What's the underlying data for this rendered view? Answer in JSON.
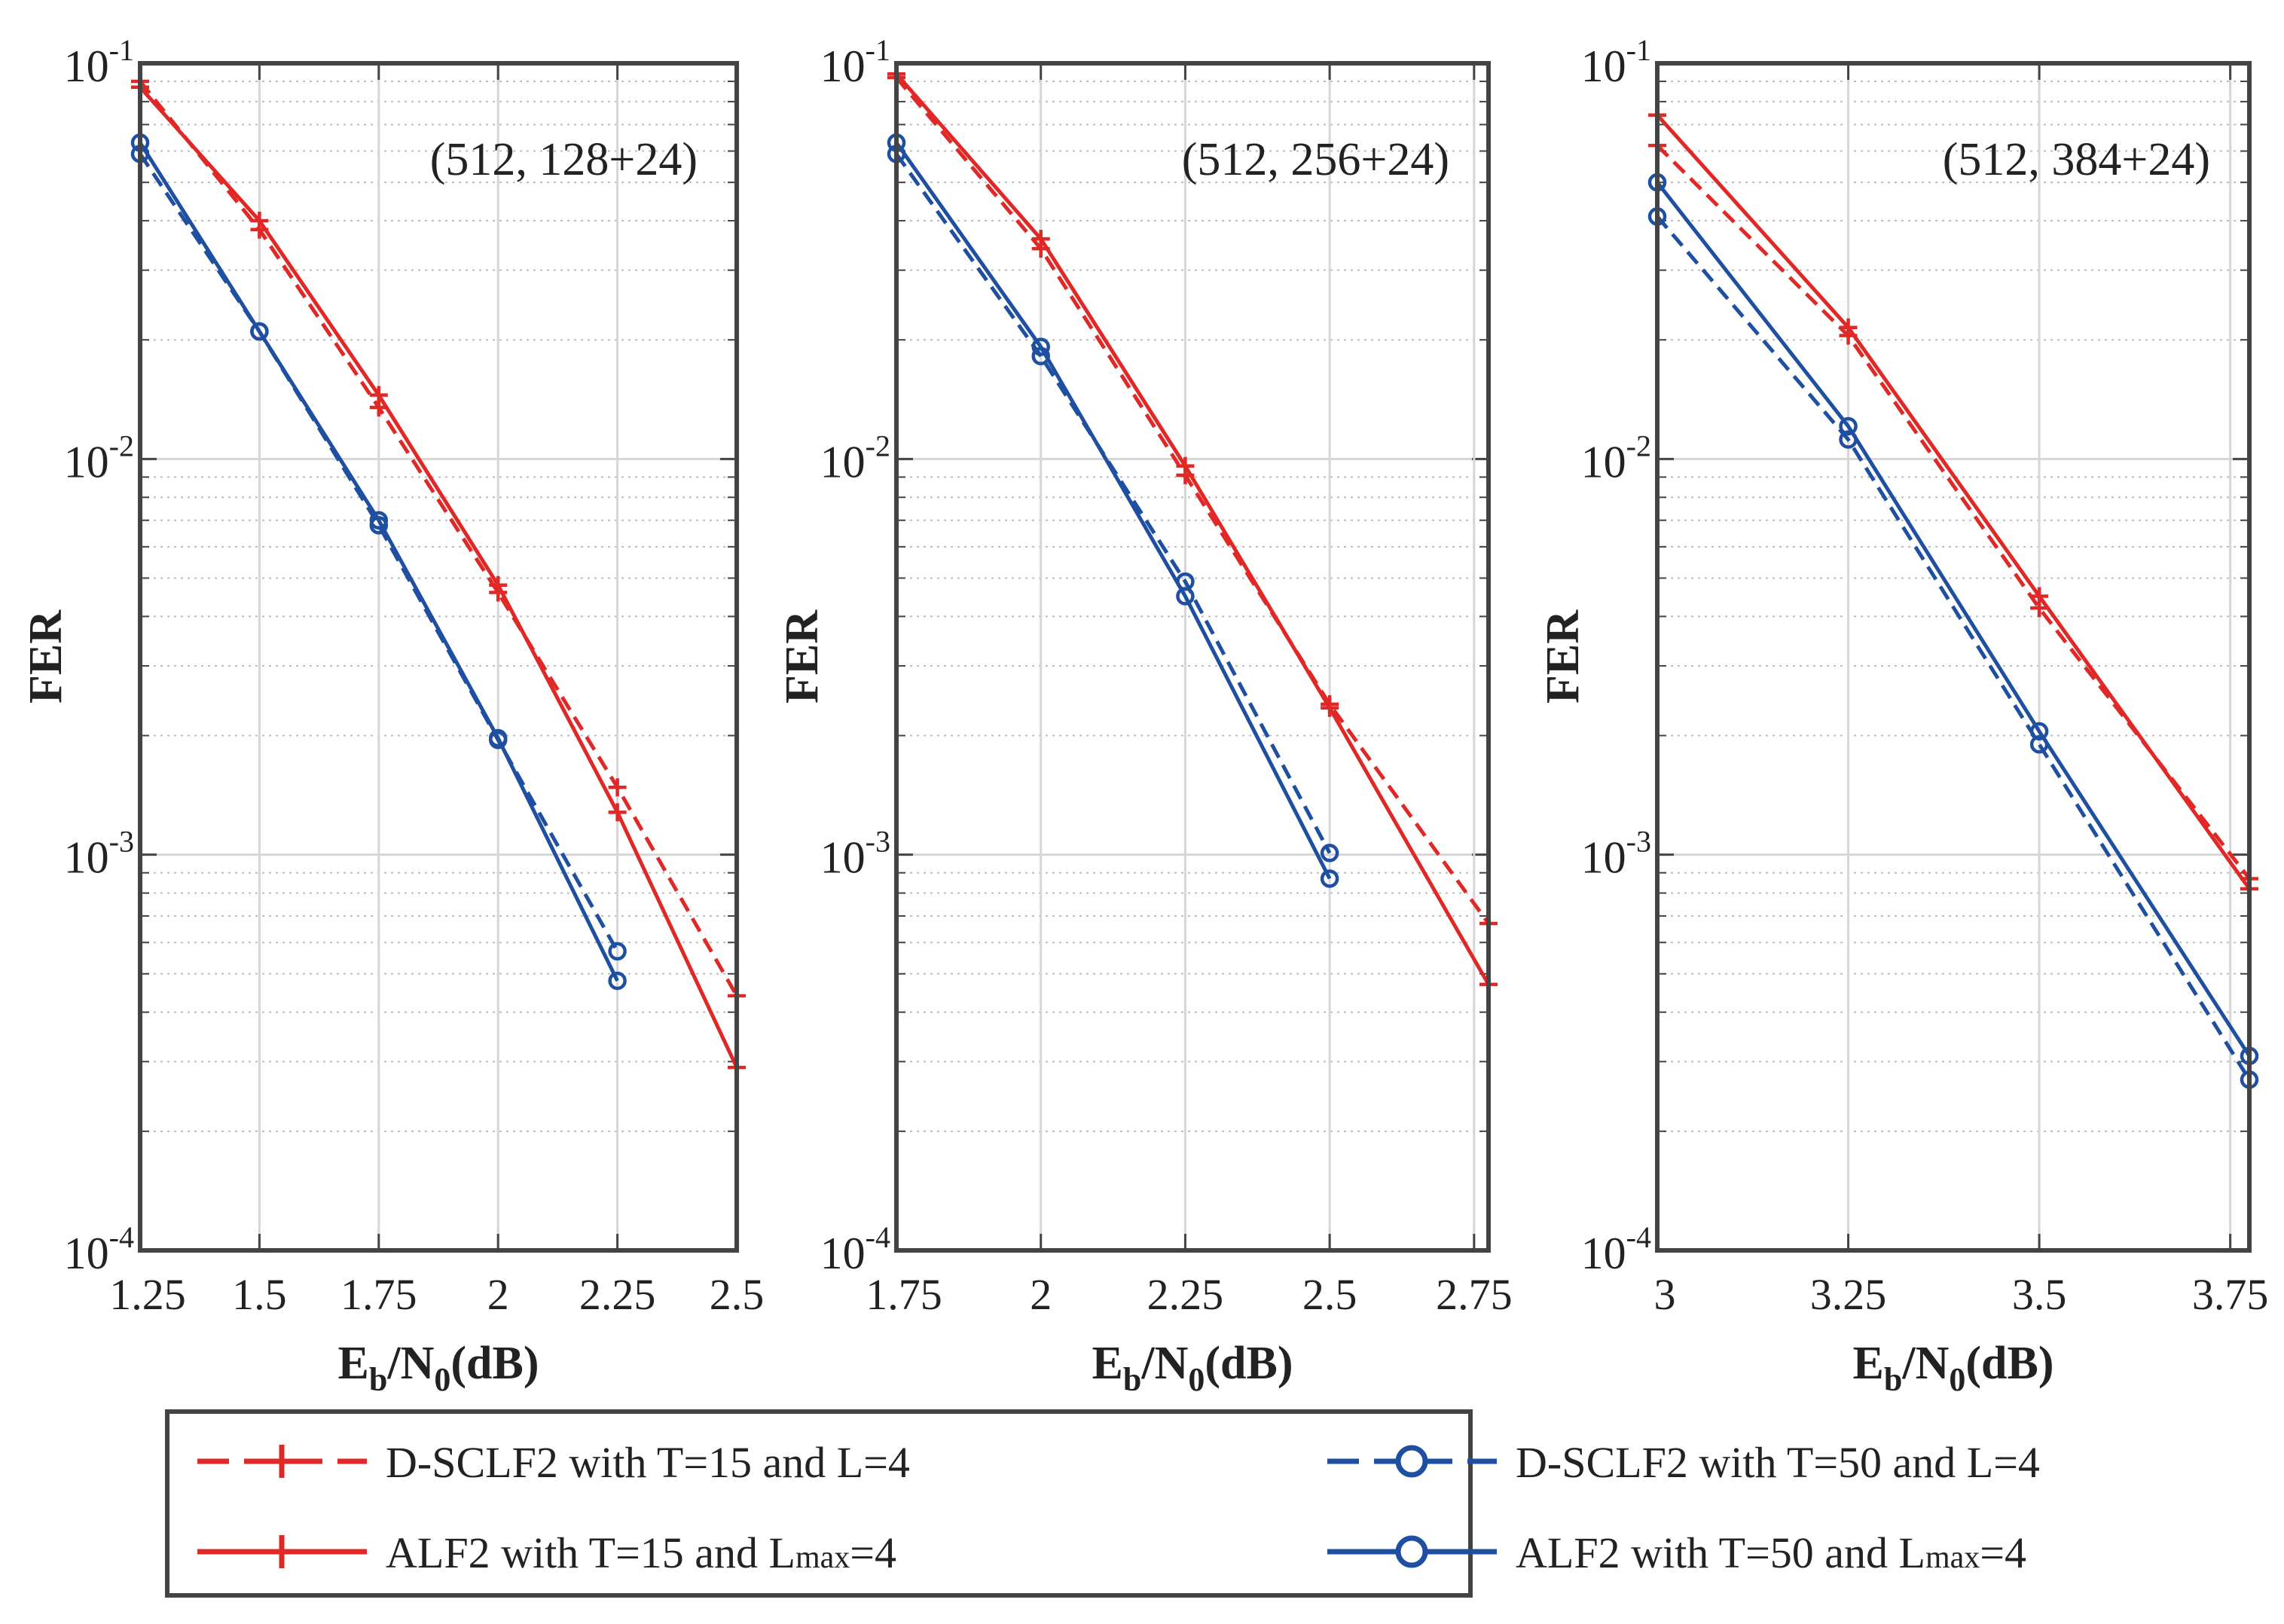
{
  "figure": {
    "legend": [
      {
        "name": "D-SCLF2 with T=15 and L=4",
        "color": "#e02826",
        "dash": true,
        "marker": "plus"
      },
      {
        "name": "D-SCLF2 with T=50 and L=4",
        "color": "#1f4fa0",
        "dash": true,
        "marker": "circle"
      },
      {
        "name": "ALF2 with T=15 and L",
        "sub": "max",
        "tail": "=4",
        "color": "#e02826",
        "dash": false,
        "marker": "plus"
      },
      {
        "name": "ALF2 with T=50 and L",
        "sub": "max",
        "tail": "=4",
        "color": "#1f4fa0",
        "dash": false,
        "marker": "circle"
      }
    ]
  },
  "chart_data": [
    {
      "type": "line",
      "annotation": "(512, 128+24)",
      "ylabel": "FER",
      "xlabel": {
        "main": "E",
        "sub1": "b",
        "mid": "/N",
        "sub2": "0",
        "tail": "(dB)"
      },
      "xlim": [
        1.25,
        2.5
      ],
      "ylim": [
        0.0001,
        0.1
      ],
      "yscale": "log",
      "xticks": [
        1.25,
        1.5,
        1.75,
        2,
        2.25,
        2.5
      ],
      "xtick_labels": [
        "1.25",
        "1.5",
        "1.75",
        "2",
        "2.25",
        "2.5"
      ],
      "yticks": [
        {
          "base": "10",
          "exp": "-1"
        },
        {
          "base": "10",
          "exp": "-2"
        },
        {
          "base": "10",
          "exp": "-3"
        },
        {
          "base": "10",
          "exp": "-4"
        }
      ],
      "series": [
        {
          "name": "D-SCLF2 with T=15 and L=4",
          "x": [
            1.25,
            1.5,
            1.75,
            2,
            2.25,
            2.5
          ],
          "y": [
            0.09,
            0.038,
            0.0135,
            0.0046,
            0.00148,
            0.00044
          ]
        },
        {
          "name": "ALF2 with T=15 and Lmax=4",
          "x": [
            1.25,
            1.5,
            1.75,
            2,
            2.25,
            2.5
          ],
          "y": [
            0.087,
            0.04,
            0.0145,
            0.0048,
            0.00128,
            0.00029
          ]
        },
        {
          "name": "D-SCLF2 with T=50 and L=4",
          "x": [
            1.25,
            1.5,
            1.75,
            2,
            2.25
          ],
          "y": [
            0.059,
            0.021,
            0.0068,
            0.00195,
            0.00057
          ]
        },
        {
          "name": "ALF2 with T=50 and Lmax=4",
          "x": [
            1.25,
            1.5,
            1.75,
            2,
            2.25
          ],
          "y": [
            0.063,
            0.021,
            0.007,
            0.00197,
            0.00048
          ]
        }
      ]
    },
    {
      "type": "line",
      "annotation": "(512, 256+24)",
      "ylabel": "FER",
      "xlabel": {
        "main": "E",
        "sub1": "b",
        "mid": "/N",
        "sub2": "0",
        "tail": "(dB)"
      },
      "xlim": [
        1.75,
        2.775
      ],
      "ylim": [
        0.0001,
        0.1
      ],
      "yscale": "log",
      "xticks": [
        1.75,
        2,
        2.25,
        2.5,
        2.75
      ],
      "xtick_labels": [
        "1.75",
        "2",
        "2.25",
        "2.5",
        "2.75"
      ],
      "yticks": [
        {
          "base": "10",
          "exp": "-1"
        },
        {
          "base": "10",
          "exp": "-2"
        },
        {
          "base": "10",
          "exp": "-3"
        },
        {
          "base": "10",
          "exp": "-4"
        }
      ],
      "series": [
        {
          "name": "D-SCLF2 with T=15 and L=4",
          "x": [
            1.75,
            2,
            2.25,
            2.5,
            2.775
          ],
          "y": [
            0.092,
            0.034,
            0.0091,
            0.0024,
            0.00067
          ]
        },
        {
          "name": "ALF2 with T=15 and Lmax=4",
          "x": [
            1.75,
            2,
            2.25,
            2.5,
            2.775
          ],
          "y": [
            0.094,
            0.036,
            0.0096,
            0.00235,
            0.00047
          ]
        },
        {
          "name": "D-SCLF2 with T=50 and L=4",
          "x": [
            1.75,
            2,
            2.25,
            2.5
          ],
          "y": [
            0.059,
            0.0182,
            0.0049,
            0.00101
          ]
        },
        {
          "name": "ALF2 with T=50 and Lmax=4",
          "x": [
            1.75,
            2,
            2.25,
            2.5
          ],
          "y": [
            0.063,
            0.0192,
            0.0045,
            0.00087
          ]
        }
      ]
    },
    {
      "type": "line",
      "annotation": "(512, 384+24)",
      "ylabel": "FER",
      "xlabel": {
        "main": "E",
        "sub1": "b",
        "mid": "/N",
        "sub2": "0",
        "tail": "(dB)"
      },
      "xlim": [
        3,
        3.775
      ],
      "ylim": [
        0.0001,
        0.1
      ],
      "yscale": "log",
      "xticks": [
        3,
        3.25,
        3.5,
        3.75
      ],
      "xtick_labels": [
        "3",
        "3.25",
        "3.5",
        "3.75"
      ],
      "yticks": [
        {
          "base": "10",
          "exp": "-1"
        },
        {
          "base": "10",
          "exp": "-2"
        },
        {
          "base": "10",
          "exp": "-3"
        },
        {
          "base": "10",
          "exp": "-4"
        }
      ],
      "series": [
        {
          "name": "D-SCLF2 with T=15 and L=4",
          "x": [
            3,
            3.25,
            3.5,
            3.775
          ],
          "y": [
            0.062,
            0.0205,
            0.0042,
            0.00087
          ]
        },
        {
          "name": "ALF2 with T=15 and Lmax=4",
          "x": [
            3,
            3.25,
            3.5,
            3.775
          ],
          "y": [
            0.074,
            0.0215,
            0.0045,
            0.00082
          ]
        },
        {
          "name": "D-SCLF2 with T=50 and L=4",
          "x": [
            3,
            3.25,
            3.5,
            3.775
          ],
          "y": [
            0.041,
            0.0112,
            0.0019,
            0.00027
          ]
        },
        {
          "name": "ALF2 with T=50 and Lmax=4",
          "x": [
            3,
            3.25,
            3.5,
            3.775
          ],
          "y": [
            0.05,
            0.0121,
            0.00205,
            0.00031
          ]
        }
      ]
    }
  ]
}
